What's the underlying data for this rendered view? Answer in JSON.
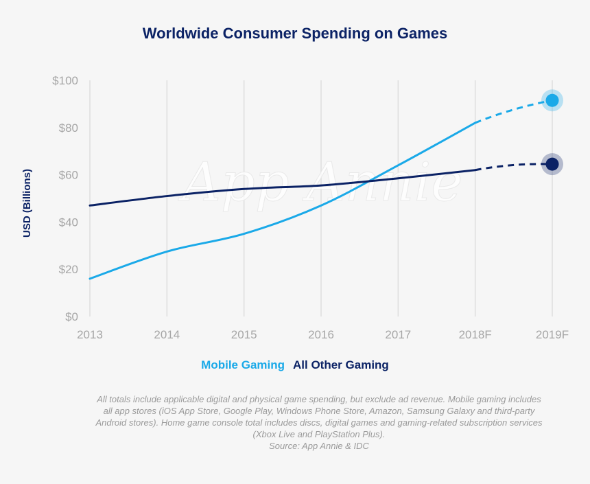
{
  "chart_data": {
    "type": "line",
    "title": "Worldwide Consumer Spending on Games",
    "ylabel": "USD (Billions)",
    "xlabel": "",
    "categories": [
      "2013",
      "2014",
      "2015",
      "2016",
      "2017",
      "2018F",
      "2019F"
    ],
    "ylim": [
      0,
      100
    ],
    "yticks": [
      "$0",
      "$20",
      "$40",
      "$60",
      "$80",
      "$100"
    ],
    "ytick_values": [
      0,
      20,
      40,
      60,
      80,
      100
    ],
    "grid": "vertical",
    "legend_position": "bottom-center",
    "watermark": "App Annie",
    "series": [
      {
        "name": "Mobile Gaming",
        "color": "#1aa9e8",
        "values": [
          16,
          27.5,
          35,
          47,
          64,
          82,
          91.5
        ],
        "forecast_from_index": 5
      },
      {
        "name": "All Other Gaming",
        "color": "#0b2265",
        "values": [
          47,
          51,
          54,
          55.5,
          58.5,
          62,
          64.5
        ],
        "forecast_from_index": 5
      }
    ]
  },
  "footnote": {
    "lines": [
      "All totals include applicable digital and physical game spending, but exclude ad revenue. Mobile gaming includes",
      "all app stores (iOS App Store, Google Play, Windows Phone Store, Amazon, Samsung Galaxy and third-party",
      "Android stores). Home game console total includes discs, digital games and gaming-related subscription services",
      "(Xbox Live and PlayStation Plus).",
      "Source: App Annie & IDC"
    ]
  }
}
